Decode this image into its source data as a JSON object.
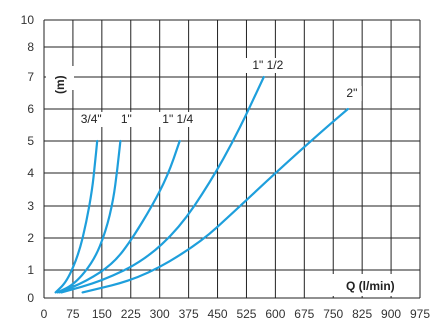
{
  "colors": {
    "curve": "#1e9fdc",
    "grid": "#222222"
  },
  "chart_data": {
    "type": "line",
    "title": "",
    "xlabel": "Q (l/min)",
    "ylabel": "(m)",
    "xlim": [
      0,
      975
    ],
    "ylim": [
      0,
      10
    ],
    "grid": true,
    "x_ticks": [
      "0",
      "75",
      "150",
      "225",
      "300",
      "375",
      "450",
      "525",
      "600",
      "675",
      "750",
      "825",
      "900",
      "975"
    ],
    "y_ticks": [
      "0",
      "1",
      "2",
      "3",
      "4",
      "5",
      "6",
      "7",
      "8",
      "10"
    ],
    "series": [
      {
        "name": "3/4\"",
        "points": [
          [
            30,
            0.2
          ],
          [
            60,
            0.6
          ],
          [
            90,
            1.5
          ],
          [
            110,
            2.5
          ],
          [
            125,
            3.5
          ],
          [
            132,
            4.3
          ],
          [
            138,
            5.0
          ]
        ]
      },
      {
        "name": "1\"",
        "points": [
          [
            35,
            0.2
          ],
          [
            80,
            0.5
          ],
          [
            130,
            1.3
          ],
          [
            160,
            2.2
          ],
          [
            180,
            3.2
          ],
          [
            190,
            4.1
          ],
          [
            198,
            5.0
          ]
        ]
      },
      {
        "name": "1\" 1/4",
        "points": [
          [
            40,
            0.2
          ],
          [
            110,
            0.6
          ],
          [
            180,
            1.2
          ],
          [
            230,
            2.0
          ],
          [
            280,
            3.0
          ],
          [
            320,
            3.9
          ],
          [
            352,
            5.0
          ]
        ]
      },
      {
        "name": "1\" 1/2",
        "points": [
          [
            45,
            0.2
          ],
          [
            150,
            0.6
          ],
          [
            260,
            1.3
          ],
          [
            350,
            2.3
          ],
          [
            430,
            3.7
          ],
          [
            500,
            5.2
          ],
          [
            570,
            7.0
          ]
        ]
      },
      {
        "name": "2\"",
        "points": [
          [
            100,
            0.2
          ],
          [
            250,
            0.7
          ],
          [
            400,
            1.8
          ],
          [
            500,
            2.9
          ],
          [
            600,
            4.0
          ],
          [
            720,
            5.3
          ],
          [
            788,
            6.0
          ]
        ]
      }
    ]
  }
}
